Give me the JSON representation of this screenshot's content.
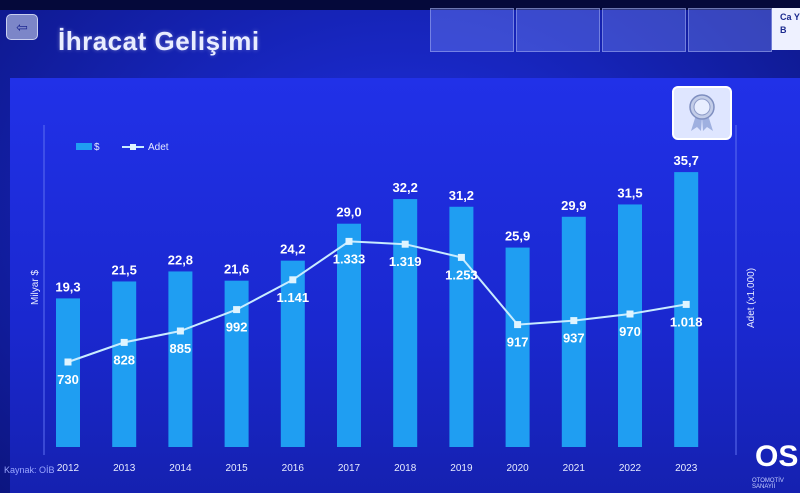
{
  "header": {
    "title": "İhracat Gelişimi",
    "tab_cut_text": "Ca Y B"
  },
  "chart_data": {
    "type": "bar",
    "categories": [
      "2012",
      "2013",
      "2014",
      "2015",
      "2016",
      "2017",
      "2018",
      "2019",
      "2020",
      "2021",
      "2022",
      "2023"
    ],
    "series": [
      {
        "name": "$",
        "kind": "bar",
        "values": [
          19.3,
          21.5,
          22.8,
          21.6,
          24.2,
          29.0,
          32.2,
          31.2,
          25.9,
          29.9,
          31.5,
          35.7
        ],
        "labels": [
          "19,3",
          "21,5",
          "22,8",
          "21,6",
          "24,2",
          "29,0",
          "32,2",
          "31,2",
          "25,9",
          "29,9",
          "31,5",
          "35,7"
        ]
      },
      {
        "name": "Adet",
        "kind": "line",
        "values": [
          730,
          828,
          885,
          992,
          1141,
          1333,
          1319,
          1253,
          917,
          937,
          970,
          1018
        ],
        "labels": [
          "730",
          "828",
          "885",
          "992",
          "1.141",
          "1.333",
          "1.319",
          "1.253",
          "917",
          "937",
          "970",
          "1.018"
        ]
      }
    ],
    "ylabel_left": "Milyar $",
    "ylabel_right": "Adet (x1.000)",
    "legend_position": "top-left",
    "grid": false
  },
  "footer": {
    "source": "Kaynak: OİB",
    "logo_text": "OSI",
    "logo_subtext": "OTOMOTİV SANAYİİ"
  },
  "colors": {
    "bar": "#1f9ef2",
    "line": "#c9ecff",
    "marker": "#dff4ff"
  }
}
